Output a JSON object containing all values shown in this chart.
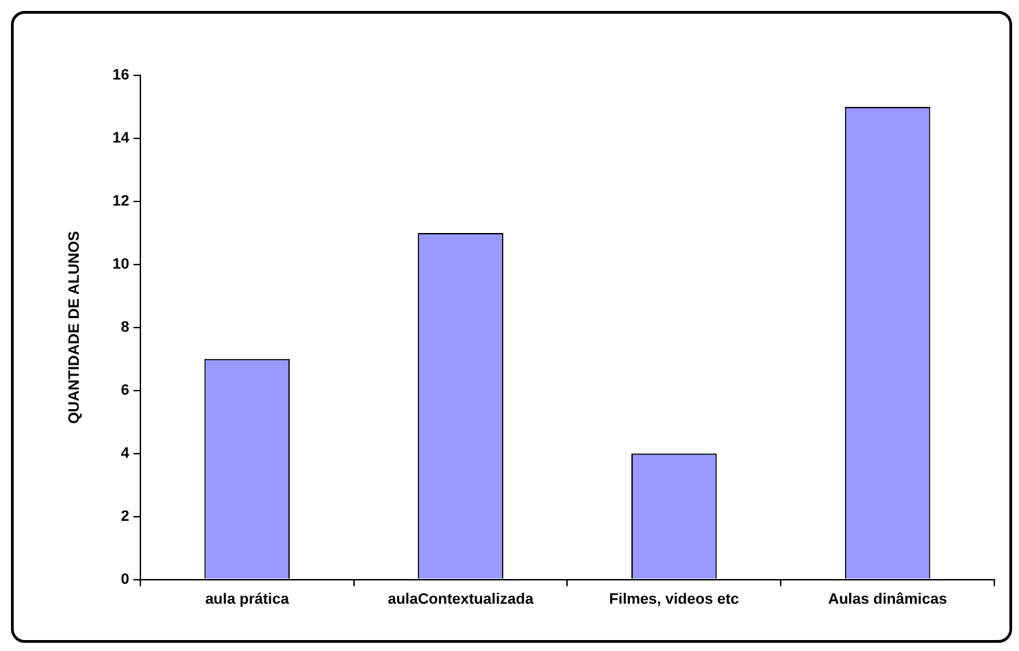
{
  "chart_data": {
    "type": "bar",
    "ylabel": "QUANTIDADE DE ALUNOS",
    "categories": [
      "aula prática",
      "aulaContextualizada",
      "Filmes, videos etc",
      "Aulas dinâmicas"
    ],
    "values": [
      7,
      11,
      4,
      15
    ],
    "color": "#9999ff",
    "ylim": [
      0,
      16
    ],
    "yticks": [
      0,
      2,
      4,
      6,
      8,
      10,
      12,
      14,
      16
    ],
    "grid": false,
    "legend": false
  }
}
